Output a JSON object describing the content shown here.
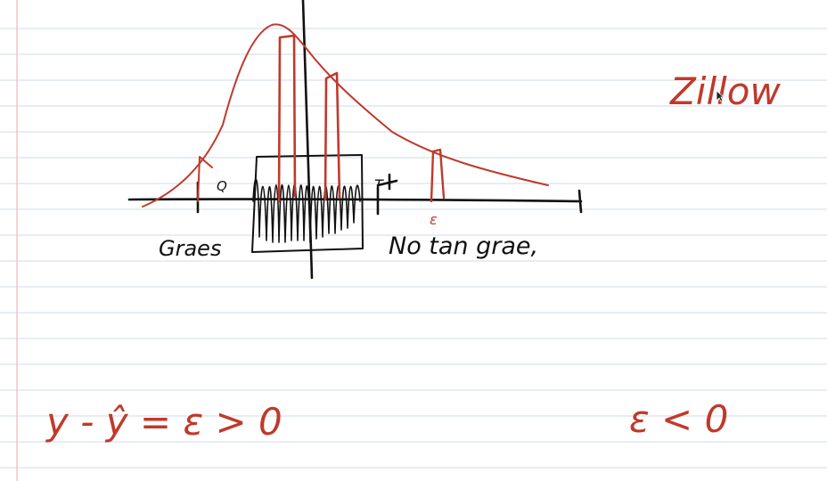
{
  "notebook": {
    "ruled_line_color": "#dbe2ec",
    "margin_line_color": "#f2c6c6",
    "ink_colors": {
      "black": "#111111",
      "red": "#c0392b"
    }
  },
  "sketch": {
    "left_marker_label": "Q",
    "right_marker_label": "T",
    "error_tick_label": "ε",
    "left_caption": "Graes",
    "right_caption": "No tan grae,"
  },
  "notes": {
    "top_right": "Zillow",
    "left_equation": "y - ŷ = ε > 0",
    "right_equation": "ε < 0"
  },
  "cursor_icon": "arrow-pointer-icon"
}
